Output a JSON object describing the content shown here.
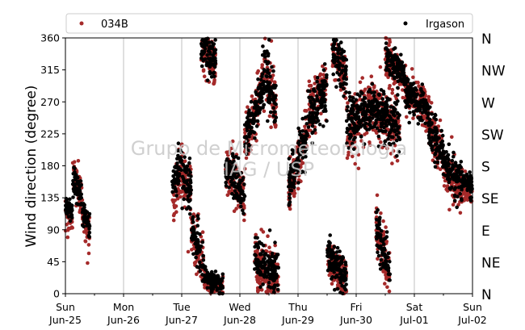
{
  "chart_data": {
    "type": "scatter",
    "ylabel": "Wind direction (degree)",
    "ylim": [
      0,
      360
    ],
    "yticks": [
      0,
      45,
      90,
      135,
      180,
      225,
      270,
      315,
      360
    ],
    "compass_labels": [
      {
        "deg": 0,
        "label": "N"
      },
      {
        "deg": 45,
        "label": "NE"
      },
      {
        "deg": 90,
        "label": "E"
      },
      {
        "deg": 135,
        "label": "SE"
      },
      {
        "deg": 180,
        "label": "S"
      },
      {
        "deg": 225,
        "label": "SW"
      },
      {
        "deg": 270,
        "label": "W"
      },
      {
        "deg": 315,
        "label": "NW"
      },
      {
        "deg": 360,
        "label": "N"
      }
    ],
    "xlim": [
      "2017-06-25",
      "2017-07-02"
    ],
    "xticks": [
      {
        "day": "Sun",
        "date": "Jun-25"
      },
      {
        "day": "Mon",
        "date": "Jun-26"
      },
      {
        "day": "Tue",
        "date": "Jun-27"
      },
      {
        "day": "Wed",
        "date": "Jun-28"
      },
      {
        "day": "Thu",
        "date": "Jun-29"
      },
      {
        "day": "Fri",
        "date": "Jun-30"
      },
      {
        "day": "Sat",
        "date": "Jul-01"
      },
      {
        "day": "Sun",
        "date": "Jul-02"
      }
    ],
    "grid": "vertical-daily",
    "legend_position": "top",
    "watermark": [
      "Grupo de Micrometeorologia",
      "IAG / USP"
    ],
    "series": [
      {
        "name": "034B",
        "color": "#a52a2a",
        "clusters": [
          {
            "start": "2017-06-25 00:00",
            "end": "2017-06-25 03:00",
            "center_start": 120,
            "center_end": 100,
            "spread": 25
          },
          {
            "start": "2017-06-25 03:00",
            "end": "2017-06-25 07:00",
            "center_start": 170,
            "center_end": 130,
            "spread": 30
          },
          {
            "start": "2017-06-25 07:00",
            "end": "2017-06-25 10:00",
            "center_start": 110,
            "center_end": 80,
            "spread": 25
          },
          {
            "start": "2017-06-26 20:00",
            "end": "2017-06-27 00:00",
            "center_start": 120,
            "center_end": 180,
            "spread": 40
          },
          {
            "start": "2017-06-27 00:00",
            "end": "2017-06-27 04:00",
            "center_start": 180,
            "center_end": 140,
            "spread": 50
          },
          {
            "start": "2017-06-27 04:00",
            "end": "2017-06-27 09:00",
            "center_start": 90,
            "center_end": 40,
            "spread": 40
          },
          {
            "start": "2017-06-27 09:00",
            "end": "2017-06-27 17:00",
            "center_start": 20,
            "center_end": 10,
            "spread": 15
          },
          {
            "start": "2017-06-27 08:00",
            "end": "2017-06-27 14:00",
            "center_start": 340,
            "center_end": 320,
            "spread": 35
          },
          {
            "start": "2017-06-27 18:00",
            "end": "2017-06-28 02:00",
            "center_start": 180,
            "center_end": 140,
            "spread": 40
          },
          {
            "start": "2017-06-28 02:00",
            "end": "2017-06-28 10:00",
            "center_start": 210,
            "center_end": 300,
            "spread": 45
          },
          {
            "start": "2017-06-28 10:00",
            "end": "2017-06-28 15:00",
            "center_start": 320,
            "center_end": 260,
            "spread": 50
          },
          {
            "start": "2017-06-28 06:00",
            "end": "2017-06-28 16:00",
            "center_start": 40,
            "center_end": 20,
            "spread": 40
          },
          {
            "start": "2017-06-28 20:00",
            "end": "2017-06-29 04:00",
            "center_start": 140,
            "center_end": 230,
            "spread": 40
          },
          {
            "start": "2017-06-29 04:00",
            "end": "2017-06-29 12:00",
            "center_start": 250,
            "center_end": 300,
            "spread": 45
          },
          {
            "start": "2017-06-29 14:00",
            "end": "2017-06-29 20:00",
            "center_start": 340,
            "center_end": 300,
            "spread": 40
          },
          {
            "start": "2017-06-29 20:00",
            "end": "2017-06-30 08:00",
            "center_start": 230,
            "center_end": 270,
            "spread": 50
          },
          {
            "start": "2017-06-29 12:00",
            "end": "2017-06-29 20:00",
            "center_start": 50,
            "center_end": 20,
            "spread": 30
          },
          {
            "start": "2017-06-30 08:00",
            "end": "2017-06-30 18:00",
            "center_start": 260,
            "center_end": 230,
            "spread": 45
          },
          {
            "start": "2017-06-30 08:00",
            "end": "2017-06-30 14:00",
            "center_start": 100,
            "center_end": 30,
            "spread": 40
          },
          {
            "start": "2017-06-30 12:00",
            "end": "2017-06-30 20:00",
            "center_start": 330,
            "center_end": 300,
            "spread": 30
          },
          {
            "start": "2017-06-30 20:00",
            "end": "2017-07-01 06:00",
            "center_start": 290,
            "center_end": 260,
            "spread": 30
          },
          {
            "start": "2017-07-01 06:00",
            "end": "2017-07-01 12:00",
            "center_start": 240,
            "center_end": 190,
            "spread": 40
          },
          {
            "start": "2017-07-01 12:00",
            "end": "2017-07-01 20:00",
            "center_start": 170,
            "center_end": 150,
            "spread": 35
          },
          {
            "start": "2017-07-01 20:00",
            "end": "2017-07-02 00:00",
            "center_start": 150,
            "center_end": 140,
            "spread": 20
          }
        ]
      },
      {
        "name": "Irgason",
        "color": "#000000",
        "clusters": [
          {
            "start": "2017-06-25 00:00",
            "end": "2017-06-25 03:00",
            "center_start": 125,
            "center_end": 110,
            "spread": 20
          },
          {
            "start": "2017-06-25 03:00",
            "end": "2017-06-25 07:00",
            "center_start": 160,
            "center_end": 135,
            "spread": 25
          },
          {
            "start": "2017-06-25 07:00",
            "end": "2017-06-25 10:00",
            "center_start": 115,
            "center_end": 95,
            "spread": 20
          },
          {
            "start": "2017-06-26 20:00",
            "end": "2017-06-27 00:00",
            "center_start": 150,
            "center_end": 185,
            "spread": 30
          },
          {
            "start": "2017-06-27 00:00",
            "end": "2017-06-27 04:00",
            "center_start": 175,
            "center_end": 150,
            "spread": 45
          },
          {
            "start": "2017-06-27 04:00",
            "end": "2017-06-27 09:00",
            "center_start": 85,
            "center_end": 45,
            "spread": 35
          },
          {
            "start": "2017-06-27 09:00",
            "end": "2017-06-27 17:00",
            "center_start": 25,
            "center_end": 10,
            "spread": 15
          },
          {
            "start": "2017-06-27 08:00",
            "end": "2017-06-27 14:00",
            "center_start": 345,
            "center_end": 325,
            "spread": 30
          },
          {
            "start": "2017-06-27 18:00",
            "end": "2017-06-28 02:00",
            "center_start": 175,
            "center_end": 145,
            "spread": 35
          },
          {
            "start": "2017-06-28 02:00",
            "end": "2017-06-28 10:00",
            "center_start": 215,
            "center_end": 295,
            "spread": 40
          },
          {
            "start": "2017-06-28 10:00",
            "end": "2017-06-28 15:00",
            "center_start": 325,
            "center_end": 265,
            "spread": 45
          },
          {
            "start": "2017-06-28 06:00",
            "end": "2017-06-28 16:00",
            "center_start": 45,
            "center_end": 25,
            "spread": 35
          },
          {
            "start": "2017-06-28 20:00",
            "end": "2017-06-29 04:00",
            "center_start": 150,
            "center_end": 230,
            "spread": 35
          },
          {
            "start": "2017-06-29 04:00",
            "end": "2017-06-29 12:00",
            "center_start": 245,
            "center_end": 290,
            "spread": 40
          },
          {
            "start": "2017-06-29 14:00",
            "end": "2017-06-29 20:00",
            "center_start": 345,
            "center_end": 310,
            "spread": 35
          },
          {
            "start": "2017-06-29 20:00",
            "end": "2017-06-30 08:00",
            "center_start": 240,
            "center_end": 260,
            "spread": 40
          },
          {
            "start": "2017-06-29 12:00",
            "end": "2017-06-29 20:00",
            "center_start": 55,
            "center_end": 20,
            "spread": 30
          },
          {
            "start": "2017-06-30 08:00",
            "end": "2017-06-30 18:00",
            "center_start": 255,
            "center_end": 235,
            "spread": 40
          },
          {
            "start": "2017-06-30 08:00",
            "end": "2017-06-30 14:00",
            "center_start": 95,
            "center_end": 25,
            "spread": 35
          },
          {
            "start": "2017-06-30 12:00",
            "end": "2017-06-30 20:00",
            "center_start": 335,
            "center_end": 305,
            "spread": 25
          },
          {
            "start": "2017-06-30 20:00",
            "end": "2017-07-01 06:00",
            "center_start": 285,
            "center_end": 255,
            "spread": 25
          },
          {
            "start": "2017-07-01 06:00",
            "end": "2017-07-01 12:00",
            "center_start": 235,
            "center_end": 190,
            "spread": 35
          },
          {
            "start": "2017-07-01 12:00",
            "end": "2017-07-01 20:00",
            "center_start": 180,
            "center_end": 160,
            "spread": 30
          },
          {
            "start": "2017-07-01 20:00",
            "end": "2017-07-02 00:00",
            "center_start": 160,
            "center_end": 150,
            "spread": 20
          }
        ]
      }
    ]
  }
}
